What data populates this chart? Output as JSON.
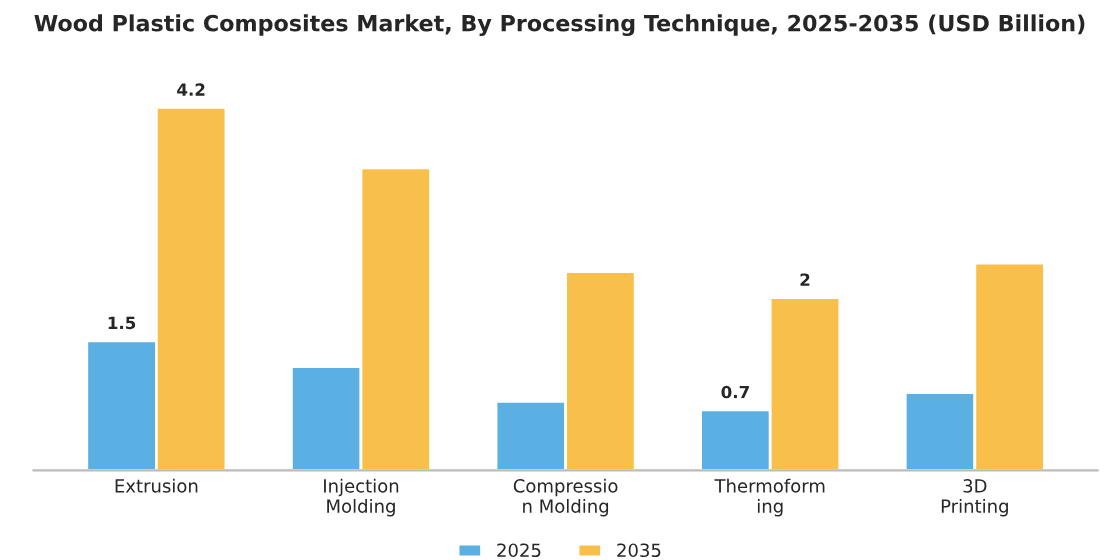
{
  "chart_data": {
    "type": "bar",
    "title": "Wood Plastic Composites Market, By Processing Technique, 2025-2035 (USD Billion)",
    "categories": [
      "Extrusion",
      "Injection\nMolding",
      "Compressio\nn Molding",
      "Thermoform\ning",
      "3D\nPrinting"
    ],
    "series": [
      {
        "name": "2025",
        "color": "#5aafe3",
        "values": [
          1.5,
          1.2,
          0.8,
          0.7,
          0.9
        ],
        "value_labels": [
          "1.5",
          null,
          null,
          "0.7",
          null
        ]
      },
      {
        "name": "2035",
        "color": "#f8c04b",
        "values": [
          4.2,
          3.5,
          2.3,
          2.0,
          2.4
        ],
        "value_labels": [
          "4.2",
          null,
          null,
          "2",
          null
        ]
      }
    ],
    "legend": "bottom",
    "grid": false
  }
}
